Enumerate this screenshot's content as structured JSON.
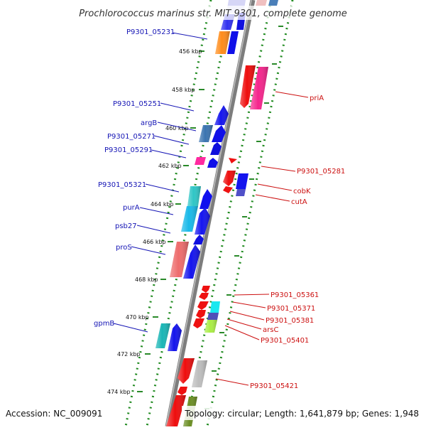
{
  "title": "Prochlorococcus marinus str. MIT 9301, complete genome",
  "accession": "Accession: NC_009091",
  "summary": "Topology: circular; Length: 1,641,879 bp; Genes: 1,948",
  "colors": {
    "backbone": "#808080",
    "track_dots": "#1f8a1f",
    "forward_label": "#1515b5",
    "reverse_label": "#cc1010"
  },
  "ticks": [
    {
      "label": "456 kbp"
    },
    {
      "label": "458 kbp"
    },
    {
      "label": "460 kbp"
    },
    {
      "label": "462 kbp"
    },
    {
      "label": "464 kbp"
    },
    {
      "label": "466 kbp"
    },
    {
      "label": "468 kbp"
    },
    {
      "label": "470 kbp"
    },
    {
      "label": "472 kbp"
    },
    {
      "label": "474 kbp"
    }
  ],
  "forward_genes": [
    {
      "name": "P9301_05231"
    },
    {
      "name": "P9301_05251"
    },
    {
      "name": "argB"
    },
    {
      "name": "P9301_05271"
    },
    {
      "name": "P9301_05291"
    },
    {
      "name": "P9301_05321"
    },
    {
      "name": "purA"
    },
    {
      "name": "psb27"
    },
    {
      "name": "proS"
    },
    {
      "name": "gpmB"
    }
  ],
  "reverse_genes": [
    {
      "name": "priA"
    },
    {
      "name": "P9301_05281"
    },
    {
      "name": "cobK"
    },
    {
      "name": "cutA"
    },
    {
      "name": "P9301_05361"
    },
    {
      "name": "P9301_05371"
    },
    {
      "name": "P9301_05381"
    },
    {
      "name": "arsC"
    },
    {
      "name": "P9301_05401"
    },
    {
      "name": "P9301_05421"
    }
  ]
}
